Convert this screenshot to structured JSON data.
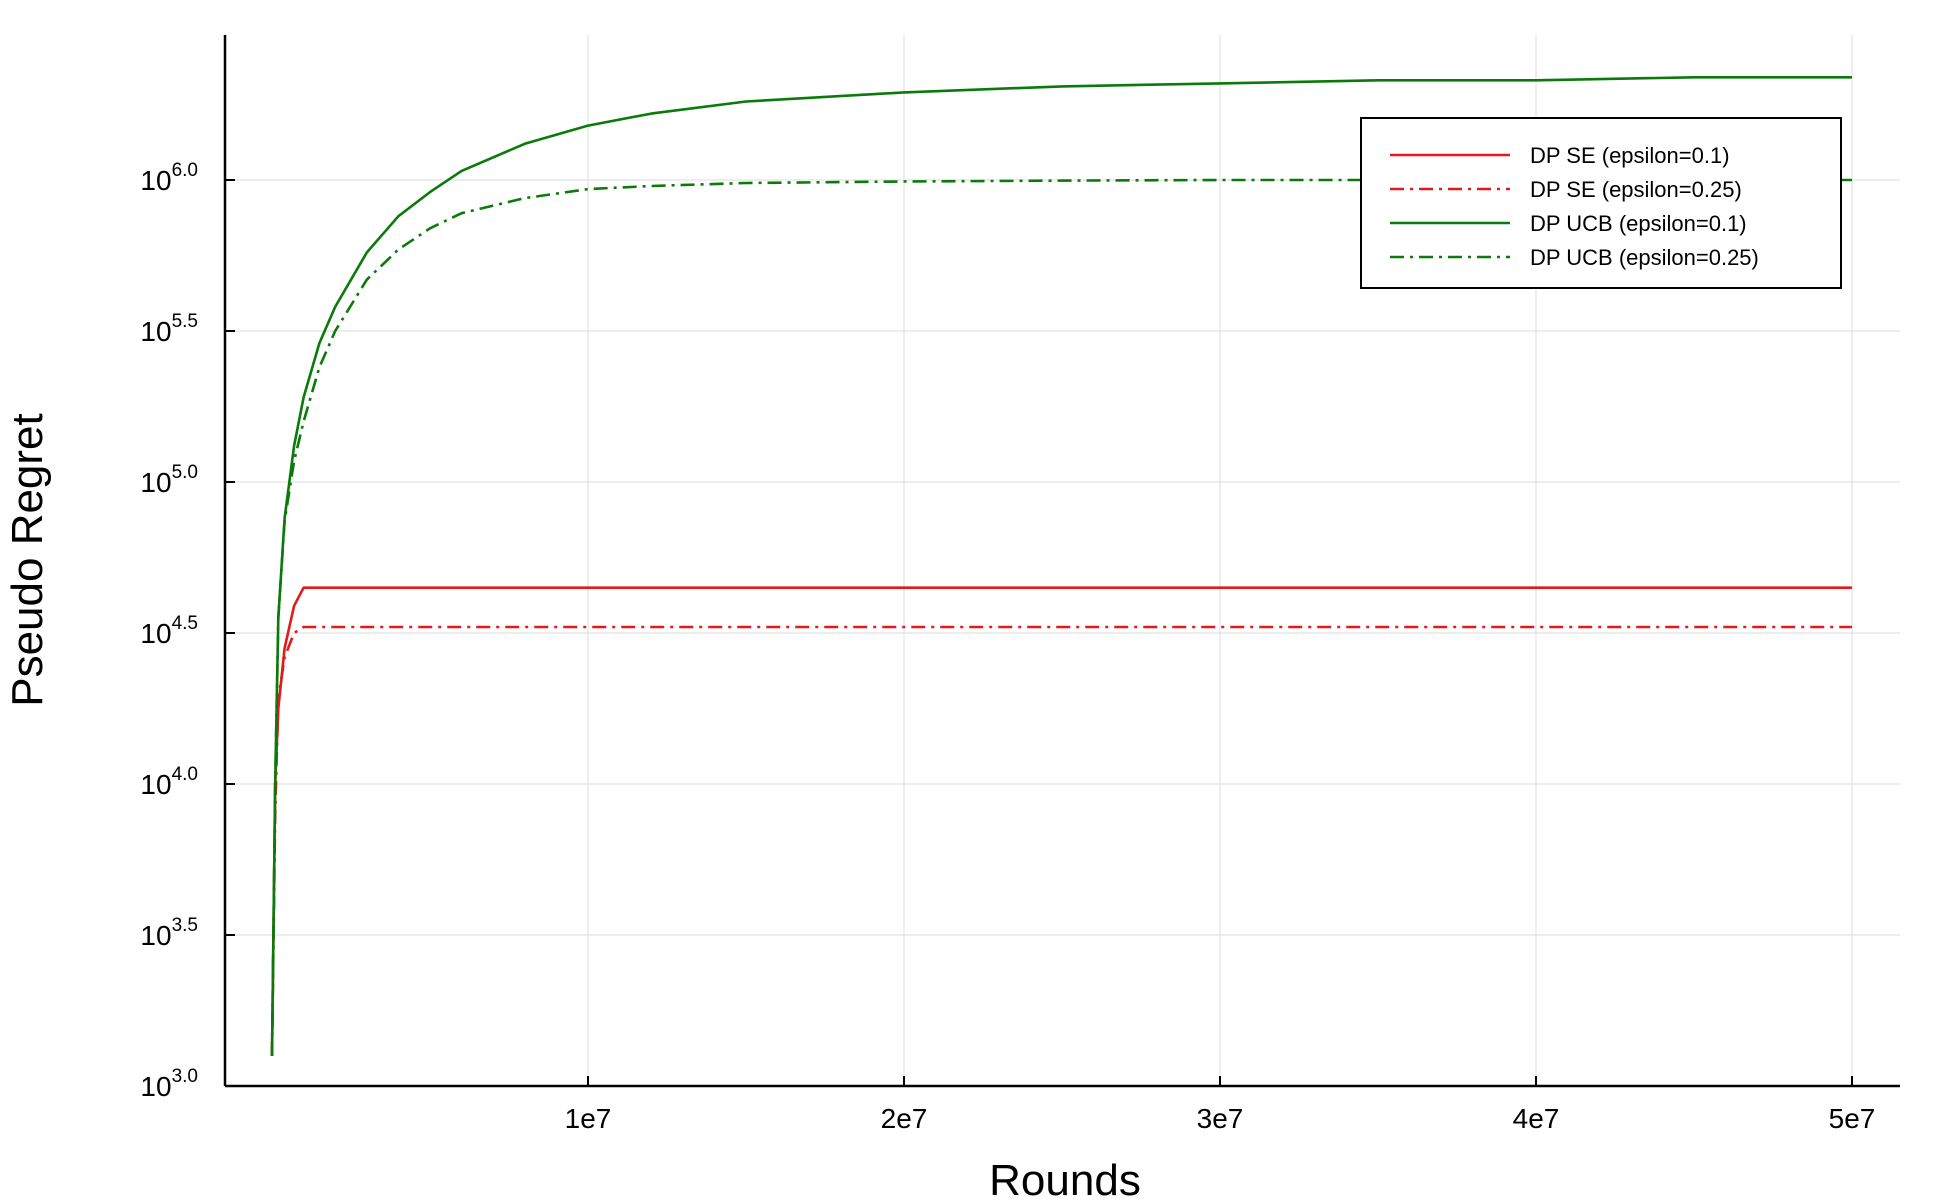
{
  "chart_data": {
    "type": "line",
    "title": "",
    "xlabel": "Rounds",
    "ylabel": "Pseudo Regret",
    "xlim": [
      0,
      50000000
    ],
    "ylim_log10": [
      3.0,
      6.45
    ],
    "yscale": "log10",
    "grid": true,
    "legend_position": "top-right",
    "x_ticks": [
      {
        "value": 10000000,
        "label": "1e7"
      },
      {
        "value": 20000000,
        "label": "2e7"
      },
      {
        "value": 30000000,
        "label": "3e7"
      },
      {
        "value": 40000000,
        "label": "4e7"
      },
      {
        "value": 50000000,
        "label": "5e7"
      }
    ],
    "y_ticks": [
      {
        "value": 3.0,
        "base": "10",
        "exp": "3.0"
      },
      {
        "value": 3.5,
        "base": "10",
        "exp": "3.5"
      },
      {
        "value": 4.0,
        "base": "10",
        "exp": "4.0"
      },
      {
        "value": 4.5,
        "base": "10",
        "exp": "4.5"
      },
      {
        "value": 5.0,
        "base": "10",
        "exp": "5.0"
      },
      {
        "value": 5.5,
        "base": "10",
        "exp": "5.5"
      },
      {
        "value": 6.0,
        "base": "10",
        "exp": "6.0"
      }
    ],
    "series": [
      {
        "name": "DP SE (epsilon=0.1)",
        "color": "#e31a1c",
        "dash": "solid",
        "x": [
          0,
          100000,
          200000,
          400000,
          700000,
          1000000,
          50000000
        ],
        "log10_y": [
          3.1,
          4.0,
          4.25,
          4.45,
          4.59,
          4.65,
          4.65
        ]
      },
      {
        "name": "DP SE (epsilon=0.25)",
        "color": "#e31a1c",
        "dash": "dashdot",
        "x": [
          0,
          100000,
          200000,
          400000,
          700000,
          1000000,
          50000000
        ],
        "log10_y": [
          3.1,
          3.9,
          4.28,
          4.42,
          4.5,
          4.52,
          4.52
        ]
      },
      {
        "name": "DP UCB (epsilon=0.1)",
        "color": "#0a7a0a",
        "dash": "solid",
        "x": [
          0,
          100000,
          200000,
          400000,
          700000,
          1000000,
          1500000,
          2000000,
          3000000,
          4000000,
          5000000,
          6000000,
          8000000,
          10000000,
          12000000,
          15000000,
          20000000,
          25000000,
          30000000,
          35000000,
          40000000,
          45000000,
          50000000
        ],
        "log10_y": [
          3.1,
          4.0,
          4.55,
          4.88,
          5.12,
          5.28,
          5.46,
          5.58,
          5.76,
          5.88,
          5.96,
          6.03,
          6.12,
          6.18,
          6.22,
          6.26,
          6.29,
          6.31,
          6.32,
          6.33,
          6.33,
          6.34,
          6.34
        ]
      },
      {
        "name": "DP UCB (epsilon=0.25)",
        "color": "#0a7a0a",
        "dash": "dashdot",
        "x": [
          0,
          100000,
          200000,
          400000,
          700000,
          1000000,
          1500000,
          2000000,
          3000000,
          4000000,
          5000000,
          6000000,
          8000000,
          10000000,
          12000000,
          15000000,
          20000000,
          25000000,
          30000000,
          35000000,
          40000000,
          45000000,
          50000000
        ],
        "log10_y": [
          3.1,
          4.0,
          4.55,
          4.87,
          5.07,
          5.2,
          5.38,
          5.5,
          5.67,
          5.77,
          5.84,
          5.89,
          5.94,
          5.97,
          5.98,
          5.99,
          5.995,
          5.998,
          6.0,
          6.0,
          6.0,
          6.0,
          6.0
        ]
      }
    ]
  }
}
